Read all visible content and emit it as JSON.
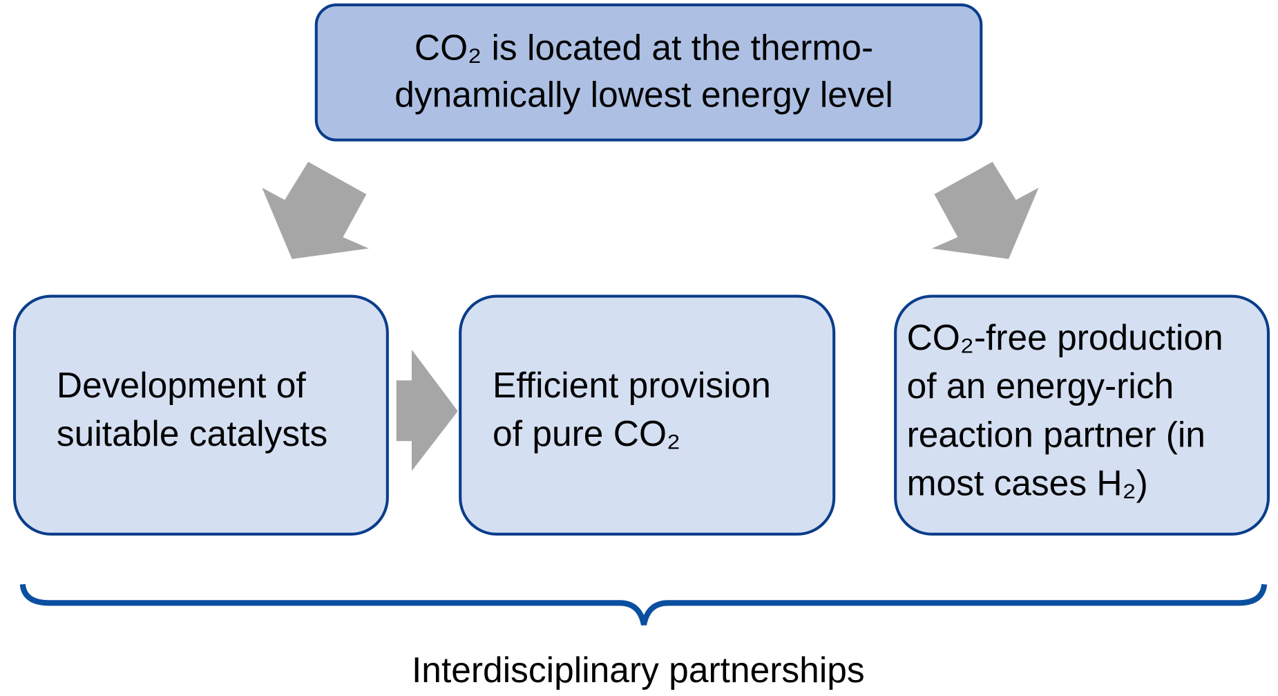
{
  "top": {
    "lines": [
      "CO₂ is located at the thermo-",
      "dynamically lowest energy level"
    ]
  },
  "boxes": [
    {
      "lines": [
        "Development of",
        "suitable catalysts"
      ]
    },
    {
      "lines": [
        "Efficient provision",
        "of pure CO₂"
      ]
    },
    {
      "lines": [
        "CO₂-free production",
        "of an energy-rich",
        "reaction partner (in",
        "most cases H₂)"
      ]
    }
  ],
  "footer": "Interdisciplinary partnerships"
}
